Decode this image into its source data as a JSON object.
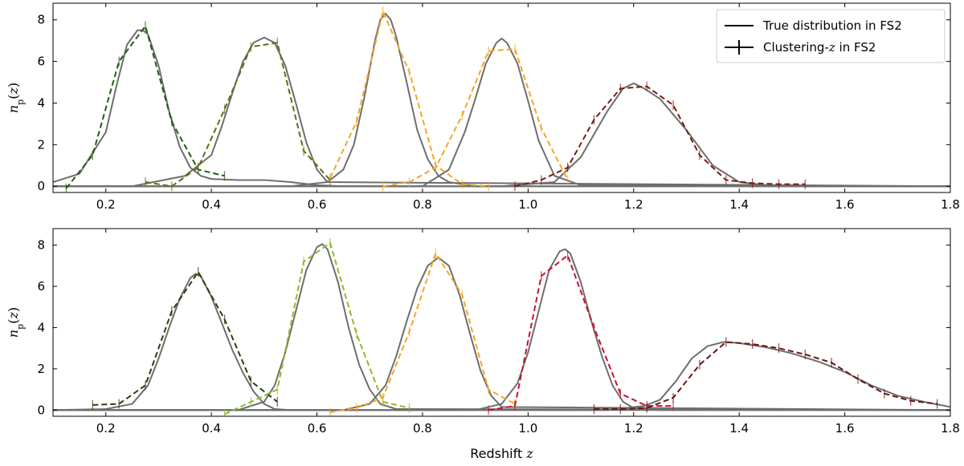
{
  "chart_data": [
    {
      "type": "line",
      "ylabel": "n_p(z)",
      "xlabel": "",
      "xlim": [
        0.1,
        1.8
      ],
      "ylim": [
        -0.3,
        8.8
      ],
      "xticks": [
        0.2,
        0.4,
        0.6,
        0.8,
        1.0,
        1.2,
        1.4,
        1.6,
        1.8
      ],
      "xtick_labels": [
        "0.2",
        "0.4",
        "0.6",
        "0.8",
        "1.0",
        "1.2",
        "1.4",
        "1.6",
        "1.8"
      ],
      "yticks": [
        0,
        2,
        4,
        6,
        8
      ],
      "ytick_labels": [
        "0",
        "2",
        "4",
        "6",
        "8"
      ],
      "legend": {
        "placement": "top-right",
        "entries": [
          {
            "label": "True distribution in FS2",
            "style": "solid"
          },
          {
            "label": "Clustering-",
            "label_var": "z",
            "label_tail": " in FS2",
            "style": "errorbar"
          }
        ]
      },
      "true_distribution": {
        "color": "#6e6e6e",
        "curves": [
          {
            "x": [
              0.1,
              0.15,
              0.2,
              0.22,
              0.24,
              0.26,
              0.27,
              0.28,
              0.3,
              0.32,
              0.34,
              0.36,
              0.38,
              0.4,
              0.45,
              0.5,
              0.55,
              0.6,
              0.65,
              1.8
            ],
            "y": [
              0.2,
              0.6,
              2.6,
              4.8,
              6.8,
              7.5,
              7.5,
              7.3,
              5.8,
              3.6,
              1.9,
              0.9,
              0.5,
              0.35,
              0.3,
              0.3,
              0.2,
              0.05,
              0,
              0
            ]
          },
          {
            "x": [
              0.1,
              0.25,
              0.35,
              0.4,
              0.42,
              0.44,
              0.46,
              0.48,
              0.5,
              0.52,
              0.54,
              0.56,
              0.58,
              0.6,
              0.62,
              1.8
            ],
            "y": [
              0,
              0,
              0.5,
              1.5,
              2.9,
              4.5,
              6.0,
              6.9,
              7.15,
              6.9,
              5.8,
              4.0,
              2.1,
              0.8,
              0.2,
              0
            ]
          },
          {
            "x": [
              0.1,
              0.55,
              0.62,
              0.65,
              0.67,
              0.69,
              0.71,
              0.72,
              0.73,
              0.74,
              0.75,
              0.77,
              0.79,
              0.81,
              0.83,
              0.85,
              0.9,
              1.8
            ],
            "y": [
              0,
              0,
              0.2,
              0.8,
              2.0,
              4.3,
              7.0,
              8.0,
              8.3,
              8.0,
              7.2,
              5.0,
              2.7,
              1.3,
              0.5,
              0.2,
              0,
              0
            ]
          },
          {
            "x": [
              0.1,
              0.8,
              0.85,
              0.88,
              0.9,
              0.92,
              0.94,
              0.95,
              0.96,
              0.98,
              1.0,
              1.02,
              1.05,
              1.1,
              1.8
            ],
            "y": [
              0,
              0,
              0.8,
              2.6,
              4.2,
              5.9,
              6.9,
              7.1,
              6.9,
              5.9,
              4.1,
              2.2,
              0.5,
              0.05,
              0
            ]
          },
          {
            "x": [
              0.1,
              0.95,
              1.05,
              1.1,
              1.15,
              1.18,
              1.2,
              1.22,
              1.25,
              1.3,
              1.35,
              1.4,
              1.45,
              1.5,
              1.8
            ],
            "y": [
              0,
              0,
              0.2,
              1.4,
              3.6,
              4.7,
              4.95,
              4.7,
              4.2,
              2.7,
              1.0,
              0.2,
              0.05,
              0,
              0
            ]
          }
        ]
      },
      "clustering_z": [
        {
          "color": "#1f5f10",
          "x": [
            0.125,
            0.175,
            0.225,
            0.275,
            0.325,
            0.375,
            0.425
          ],
          "y": [
            -0.1,
            1.5,
            6.0,
            7.7,
            3.1,
            0.8,
            0.5
          ]
        },
        {
          "color": "#6b6a13",
          "x": [
            0.275,
            0.325,
            0.375,
            0.425,
            0.475,
            0.525,
            0.575,
            0.625
          ],
          "y": [
            0.2,
            0.0,
            0.9,
            3.7,
            6.7,
            6.9,
            1.7,
            0.3
          ]
        },
        {
          "color": "#f5a623",
          "x": [
            0.625,
            0.675,
            0.725,
            0.775,
            0.825,
            0.875,
            0.925
          ],
          "y": [
            0.4,
            3.1,
            8.4,
            5.5,
            1.0,
            0.1,
            0.0
          ]
        },
        {
          "color": "#f5a623",
          "x": [
            0.725,
            0.775,
            0.825,
            0.875,
            0.925,
            0.975,
            1.025,
            1.075
          ],
          "y": [
            0.0,
            0.2,
            0.9,
            3.4,
            6.5,
            6.6,
            2.8,
            0.3
          ]
        },
        {
          "color": "#7a1c14",
          "x": [
            0.975,
            1.025,
            1.075,
            1.125,
            1.175,
            1.225,
            1.275,
            1.325,
            1.375,
            1.425,
            1.475,
            1.525
          ],
          "y": [
            0.0,
            0.3,
            0.9,
            3.2,
            4.7,
            4.8,
            3.9,
            1.5,
            0.3,
            0.15,
            0.1,
            0.1
          ]
        }
      ]
    },
    {
      "type": "line",
      "ylabel": "n_p(z)",
      "xlabel": "Redshift",
      "xlabel_var": "z",
      "xlim": [
        0.1,
        1.8
      ],
      "ylim": [
        -0.3,
        8.8
      ],
      "xticks": [
        0.2,
        0.4,
        0.6,
        0.8,
        1.0,
        1.2,
        1.4,
        1.6,
        1.8
      ],
      "xtick_labels": [
        "0.2",
        "0.4",
        "0.6",
        "0.8",
        "1.0",
        "1.2",
        "1.4",
        "1.6",
        "1.8"
      ],
      "yticks": [
        0,
        2,
        4,
        6,
        8
      ],
      "ytick_labels": [
        "0",
        "2",
        "4",
        "6",
        "8"
      ],
      "true_distribution": {
        "color": "#6e6e6e",
        "curves": [
          {
            "x": [
              0.1,
              0.2,
              0.25,
              0.28,
              0.3,
              0.32,
              0.34,
              0.36,
              0.37,
              0.38,
              0.4,
              0.42,
              0.44,
              0.46,
              0.48,
              0.5,
              0.52,
              0.55,
              0.6,
              1.8
            ],
            "y": [
              0,
              0.05,
              0.3,
              1.2,
              2.5,
              4.0,
              5.4,
              6.4,
              6.6,
              6.5,
              5.5,
              4.2,
              2.9,
              1.8,
              0.9,
              0.3,
              0.05,
              0,
              0,
              0
            ]
          },
          {
            "x": [
              0.1,
              0.45,
              0.5,
              0.52,
              0.54,
              0.56,
              0.58,
              0.6,
              0.61,
              0.62,
              0.64,
              0.66,
              0.68,
              0.7,
              0.72,
              0.75,
              1.8
            ],
            "y": [
              0,
              0,
              0.4,
              1.2,
              2.8,
              4.8,
              6.8,
              7.9,
              8.05,
              7.8,
              6.2,
              4.0,
              2.2,
              1.0,
              0.3,
              0.05,
              0
            ]
          },
          {
            "x": [
              0.1,
              0.65,
              0.7,
              0.73,
              0.75,
              0.77,
              0.79,
              0.81,
              0.83,
              0.85,
              0.87,
              0.89,
              0.91,
              0.93,
              0.95,
              1.8
            ],
            "y": [
              0,
              0,
              0.3,
              1.2,
              2.6,
              4.3,
              5.9,
              7.0,
              7.4,
              7.0,
              5.6,
              3.7,
              1.9,
              0.7,
              0.15,
              0
            ]
          },
          {
            "x": [
              0.1,
              0.9,
              0.95,
              0.98,
              1.0,
              1.02,
              1.04,
              1.06,
              1.07,
              1.08,
              1.1,
              1.12,
              1.14,
              1.16,
              1.18,
              1.2,
              1.25,
              1.8
            ],
            "y": [
              0,
              0,
              0.3,
              1.3,
              2.8,
              4.8,
              6.8,
              7.7,
              7.8,
              7.6,
              6.2,
              4.3,
              2.6,
              1.2,
              0.4,
              0.1,
              0,
              0
            ]
          },
          {
            "x": [
              0.1,
              1.15,
              1.22,
              1.25,
              1.28,
              1.31,
              1.34,
              1.37,
              1.4,
              1.45,
              1.5,
              1.55,
              1.6,
              1.65,
              1.7,
              1.75,
              1.8
            ],
            "y": [
              0,
              0,
              0.2,
              0.5,
              1.4,
              2.5,
              3.1,
              3.3,
              3.25,
              3.05,
              2.75,
              2.35,
              1.85,
              1.2,
              0.7,
              0.4,
              0.15
            ]
          }
        ]
      },
      "clustering_z": [
        {
          "color": "#2f3d0c",
          "x": [
            0.175,
            0.225,
            0.275,
            0.325,
            0.375,
            0.425,
            0.475,
            0.525
          ],
          "y": [
            0.25,
            0.3,
            1.2,
            4.8,
            6.7,
            4.4,
            1.4,
            0.4
          ]
        },
        {
          "color": "#8dbb25",
          "x": [
            0.425,
            0.475,
            0.525,
            0.575,
            0.625,
            0.675,
            0.725,
            0.775
          ],
          "y": [
            -0.2,
            0.4,
            1.0,
            7.2,
            8.1,
            3.7,
            0.4,
            0.1
          ]
        },
        {
          "color": "#f5a623",
          "x": [
            0.625,
            0.675,
            0.725,
            0.775,
            0.825,
            0.875,
            0.925,
            0.975
          ],
          "y": [
            -0.1,
            0.1,
            0.6,
            3.8,
            7.6,
            5.6,
            1.0,
            0.3
          ]
        },
        {
          "color": "#c8102e",
          "x": [
            0.925,
            0.975,
            1.025,
            1.075,
            1.125,
            1.175,
            1.225,
            1.275
          ],
          "y": [
            0.0,
            0.2,
            6.5,
            7.5,
            4.0,
            0.8,
            0.2,
            0.2
          ]
        },
        {
          "color": "#6a1414",
          "x": [
            1.125,
            1.175,
            1.225,
            1.275,
            1.325,
            1.375,
            1.425,
            1.475,
            1.525,
            1.575,
            1.625,
            1.675,
            1.725,
            1.775
          ],
          "y": [
            0.05,
            0.05,
            0.1,
            0.6,
            2.2,
            3.3,
            3.2,
            3.0,
            2.7,
            2.3,
            1.5,
            0.8,
            0.45,
            0.3
          ]
        }
      ]
    }
  ]
}
